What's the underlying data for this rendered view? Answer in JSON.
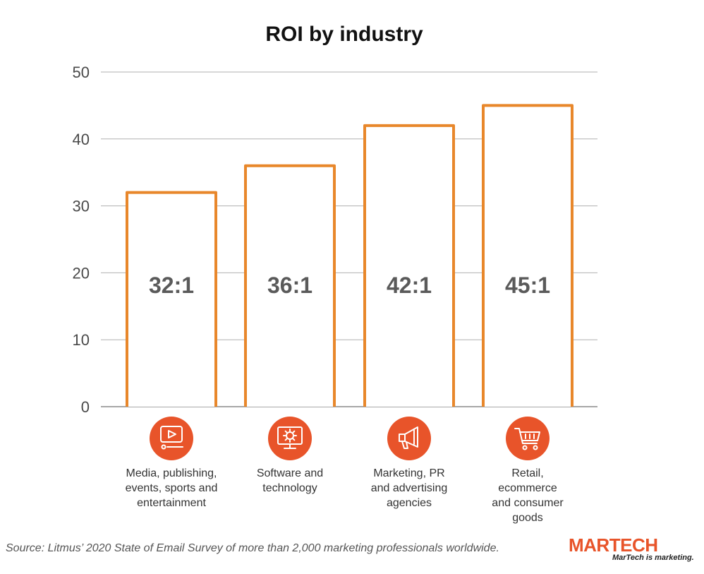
{
  "chart_data": {
    "type": "bar",
    "title": "ROI by industry",
    "categories": [
      "Media, publishing, events, sports and entertainment",
      "Software and technology",
      "Marketing, PR and advertising agencies",
      "Retail, ecommerce and consumer goods"
    ],
    "category_label_lines": [
      [
        "Media, publishing,",
        "events, sports and",
        "entertainment"
      ],
      [
        "Software and",
        "technology"
      ],
      [
        "Marketing, PR",
        "and advertising",
        "agencies"
      ],
      [
        "Retail,",
        "ecommerce",
        "and consumer",
        "goods"
      ]
    ],
    "category_icons": [
      "video-player-icon",
      "monitor-gear-icon",
      "megaphone-icon",
      "shopping-cart-icon"
    ],
    "values": [
      32,
      36,
      42,
      45
    ],
    "data_labels": [
      "32:1",
      "36:1",
      "42:1",
      "45:1"
    ],
    "yticks": [
      0,
      10,
      20,
      30,
      40,
      50
    ],
    "ylim": [
      0,
      50
    ],
    "xlabel": "",
    "ylabel": "",
    "grid": true,
    "bar_stroke_color": "#e8872b",
    "icon_circle_color": "#e8542a",
    "grid_color": "#b0b0b0"
  },
  "source": "Source: Litmus’ 2020 State of Email Survey of more than 2,000 marketing professionals worldwide.",
  "logo": {
    "wordmark_mar": "MAR",
    "wordmark_tech": "TECH",
    "tagline": "MarTech is marketing."
  }
}
